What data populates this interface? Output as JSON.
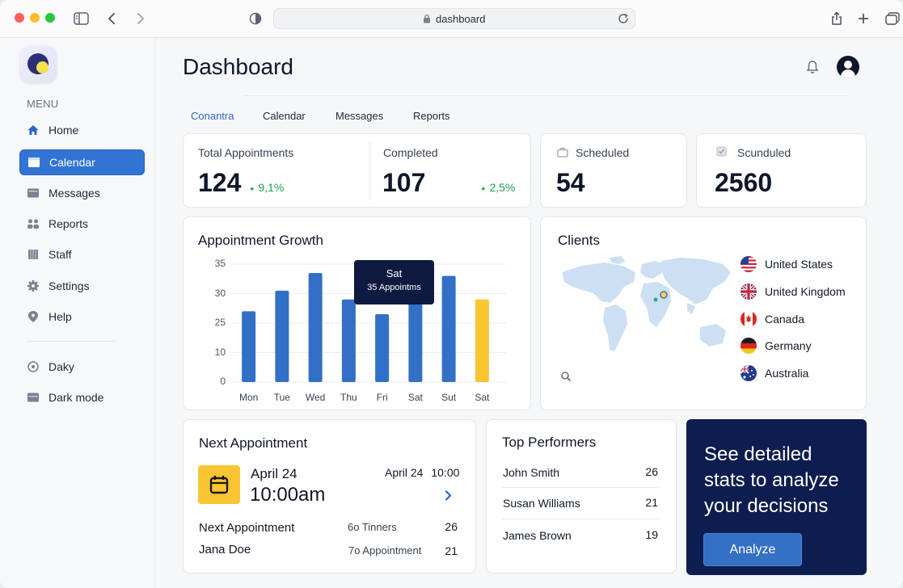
{
  "browser": {
    "url": "dashboard"
  },
  "sidebar": {
    "menu_title": "MENU",
    "items": [
      {
        "label": "Home",
        "icon": "home-icon"
      },
      {
        "label": "Calendar",
        "icon": "calendar-icon",
        "active": true
      },
      {
        "label": "Messages",
        "icon": "messages-icon"
      },
      {
        "label": "Reports",
        "icon": "reports-icon"
      },
      {
        "label": "Staff",
        "icon": "staff-icon"
      },
      {
        "label": "Settings",
        "icon": "gear-icon"
      },
      {
        "label": "Help",
        "icon": "help-icon"
      }
    ],
    "bottom_items": [
      {
        "label": "Daky",
        "icon": "daky-icon"
      },
      {
        "label": "Dark mode",
        "icon": "dark-mode-icon"
      }
    ]
  },
  "header": {
    "title": "Dashboard"
  },
  "tabs": [
    {
      "label": "Conantra",
      "active": true
    },
    {
      "label": "Calendar"
    },
    {
      "label": "Messages"
    },
    {
      "label": "Reports"
    }
  ],
  "stats": {
    "total": {
      "label": "Total Appointments",
      "value": "124",
      "delta": "9,1%"
    },
    "completed": {
      "label": "Completed",
      "value": "107",
      "delta": "2,5%"
    },
    "scheduled": {
      "label": "Scheduled",
      "value": "54"
    },
    "scunduled": {
      "label": "Scunduled",
      "value": "2560"
    }
  },
  "growth": {
    "title": "Appointment Growth",
    "tooltip": {
      "day": "Sat",
      "text": "35 Appointms"
    }
  },
  "chart_data": {
    "type": "bar",
    "categories": [
      "Mon",
      "Tue",
      "Wed",
      "Thu",
      "Fri",
      "Sat",
      "Sut",
      "Sat"
    ],
    "values": [
      24,
      31,
      37,
      28,
      23,
      35,
      36,
      28
    ],
    "highlight_index": 7,
    "yticks": [
      "35",
      "30",
      "25",
      "10",
      "0"
    ],
    "ylim": [
      0,
      40
    ],
    "grid": true,
    "colors": {
      "bar": "#3270c7",
      "highlight": "#f8c632"
    }
  },
  "clients": {
    "title": "Clients",
    "countries": [
      {
        "name": "United States",
        "flag": "us-flag-icon"
      },
      {
        "name": "United Kingdom",
        "flag": "uk-flag-icon"
      },
      {
        "name": "Canada",
        "flag": "canada-flag-icon"
      },
      {
        "name": "Germany",
        "flag": "germany-flag-icon"
      },
      {
        "name": "Australia",
        "flag": "australia-flag-icon"
      }
    ]
  },
  "next_appointment": {
    "title": "Next Appointment",
    "date": "April 24",
    "time": "10:00am",
    "right_date": "April 24",
    "right_time": "10:00",
    "row1": {
      "label": "Next Appointment",
      "detail": "6o Tinners",
      "value": "26"
    },
    "row2": {
      "label": "Jana Doe",
      "detail": "7o Appointment",
      "value": "21"
    }
  },
  "performers": {
    "title": "Top Performers",
    "list": [
      {
        "name": "John Smith",
        "value": "26"
      },
      {
        "name": "Susan Williams",
        "value": "21"
      },
      {
        "name": "James Brown",
        "value": "19"
      }
    ]
  },
  "cta": {
    "text": "See detailed stats to analyze your decisions",
    "button": "Analyze"
  }
}
